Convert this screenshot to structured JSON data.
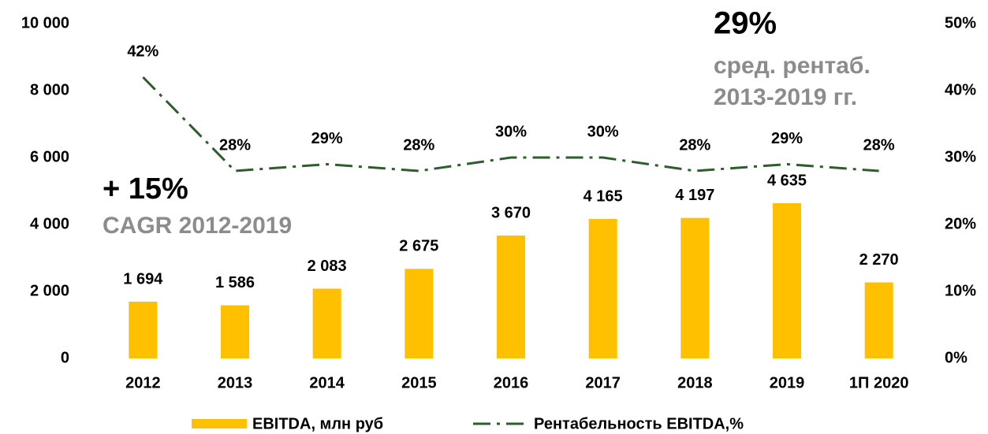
{
  "chart_data": {
    "type": "bar",
    "categories": [
      "2012",
      "2013",
      "2014",
      "2015",
      "2016",
      "2017",
      "2018",
      "2019",
      "1П 2020"
    ],
    "series": [
      {
        "name": "EBITDA, млн руб",
        "type": "bar",
        "color": "#ffc000",
        "values": [
          1694,
          1586,
          2083,
          2675,
          3670,
          4165,
          4197,
          4635,
          2270
        ],
        "value_labels": [
          "1 694",
          "1 586",
          "2 083",
          "2 675",
          "3 670",
          "4 165",
          "4 197",
          "4 635",
          "2 270"
        ]
      },
      {
        "name": "Рентабельность EBITDA,%",
        "type": "line",
        "axis": "y2",
        "color": "#2e5e2e",
        "values": [
          42,
          28,
          29,
          28,
          30,
          30,
          28,
          29,
          28
        ],
        "value_labels": [
          "42%",
          "28%",
          "29%",
          "28%",
          "30%",
          "30%",
          "28%",
          "29%",
          "28%"
        ]
      }
    ],
    "ylim": [
      0,
      10000
    ],
    "yticks": [
      0,
      {
        "value": 2000,
        "label": "2 000"
      },
      {
        "value": 4000,
        "label": "4 000"
      },
      {
        "value": 6000,
        "label": "6 000"
      },
      {
        "value": 8000,
        "label": "8 000"
      },
      {
        "value": 10000,
        "label": "10 000"
      }
    ],
    "y2lim": [
      0,
      50
    ],
    "y2ticks": [
      {
        "value": 0,
        "label": "0%"
      },
      {
        "value": 10,
        "label": "10%"
      },
      {
        "value": 20,
        "label": "20%"
      },
      {
        "value": 30,
        "label": "30%"
      },
      {
        "value": 40,
        "label": "40%"
      },
      {
        "value": 50,
        "label": "50%"
      }
    ],
    "annotations": [
      "29%",
      "сред. рентаб.",
      "2013-2019 гг.",
      "+ 15%",
      "CAGR 2012-2019"
    ],
    "legend": "bottom"
  }
}
